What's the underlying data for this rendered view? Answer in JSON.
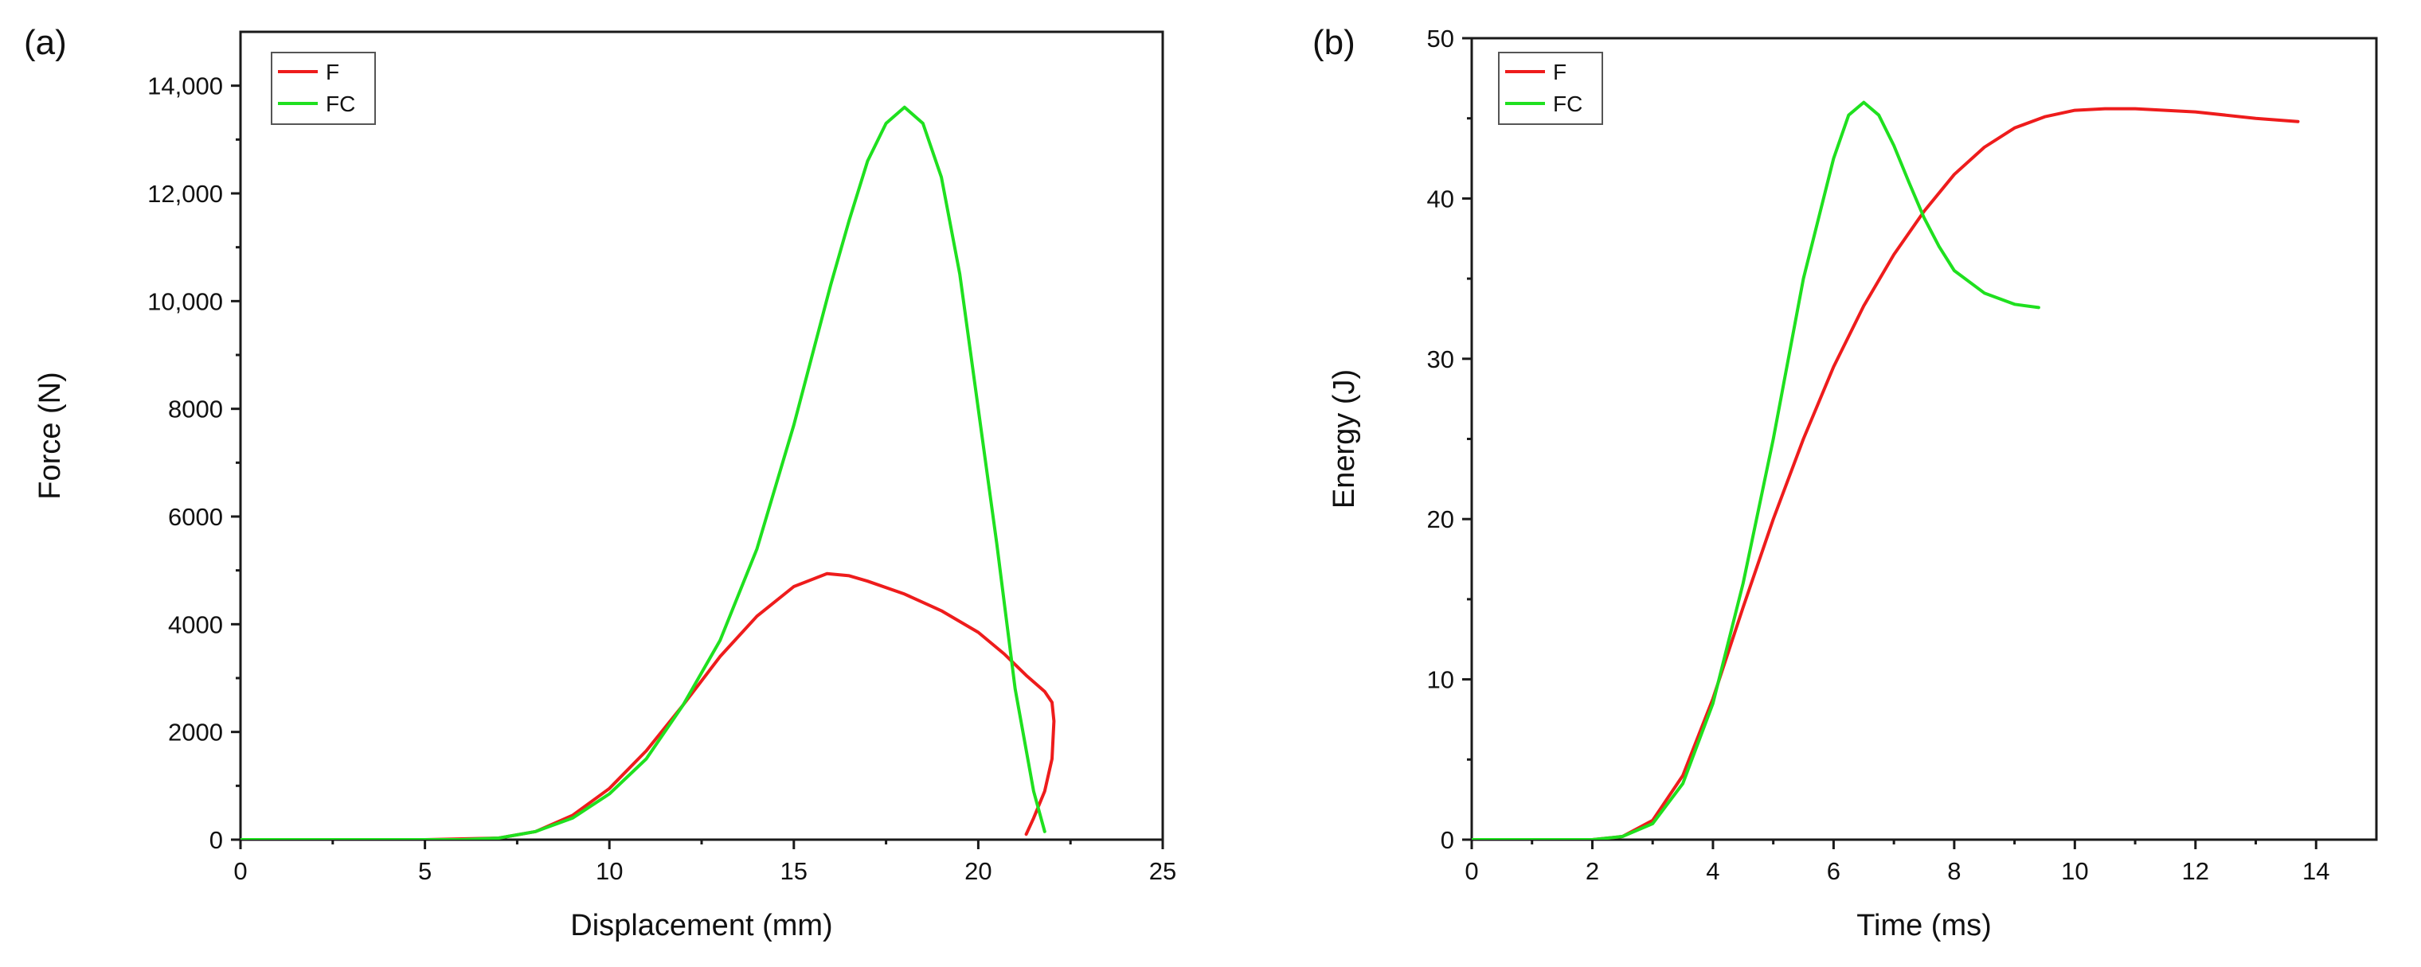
{
  "chart_data": [
    {
      "panel_label": "(a)",
      "type": "line",
      "xlabel": "Displacement (mm)",
      "ylabel": "Force (N)",
      "xlim": [
        0,
        25
      ],
      "ylim": [
        0,
        15000
      ],
      "xticks": [
        0,
        5,
        10,
        15,
        20,
        25
      ],
      "xtick_labels": [
        "0",
        "5",
        "10",
        "15",
        "20",
        "25"
      ],
      "yticks": [
        0,
        2000,
        4000,
        6000,
        8000,
        10000,
        12000,
        14000
      ],
      "ytick_labels": [
        "0",
        "2000",
        "4000",
        "6000",
        "8000",
        "10,000",
        "12,000",
        "14,000"
      ],
      "legend_position": "top-left",
      "series": [
        {
          "name": "F",
          "color": "#ee1c1c",
          "x": [
            0,
            5,
            7,
            8,
            9,
            10,
            11,
            12,
            13,
            14,
            15,
            15.9,
            16.5,
            17,
            18,
            19,
            20,
            20.7,
            21.3,
            21.8,
            22,
            22.05,
            22.0,
            21.8,
            21.5,
            21.3
          ],
          "y": [
            0,
            0,
            30,
            150,
            450,
            950,
            1650,
            2500,
            3400,
            4150,
            4700,
            4940,
            4900,
            4800,
            4560,
            4250,
            3850,
            3450,
            3050,
            2750,
            2550,
            2200,
            1500,
            900,
            400,
            100
          ]
        },
        {
          "name": "FC",
          "color": "#1fe01f",
          "x": [
            0,
            6,
            7,
            8,
            9,
            10,
            11,
            12,
            13,
            14,
            15,
            16,
            16.5,
            17,
            17.5,
            18,
            18.5,
            19,
            19.5,
            20,
            20.5,
            21,
            21.5,
            21.8
          ],
          "y": [
            0,
            0,
            30,
            150,
            400,
            850,
            1500,
            2500,
            3700,
            5400,
            7700,
            10300,
            11500,
            12600,
            13300,
            13600,
            13300,
            12300,
            10500,
            8000,
            5500,
            2800,
            900,
            150
          ]
        }
      ]
    },
    {
      "panel_label": "(b)",
      "type": "line",
      "xlabel": "Time (ms)",
      "ylabel": "Energy (J)",
      "xlim": [
        0,
        15
      ],
      "ylim": [
        0,
        50
      ],
      "xticks": [
        0,
        2,
        4,
        6,
        8,
        10,
        12,
        14
      ],
      "xtick_labels": [
        "0",
        "2",
        "4",
        "6",
        "8",
        "10",
        "12",
        "14"
      ],
      "yticks": [
        0,
        10,
        20,
        30,
        40,
        50
      ],
      "ytick_labels": [
        "0",
        "10",
        "20",
        "30",
        "40",
        "50"
      ],
      "legend_position": "top-left",
      "series": [
        {
          "name": "F",
          "color": "#ee1c1c",
          "x": [
            0,
            2,
            2.5,
            3,
            3.5,
            4,
            4.5,
            5,
            5.5,
            6,
            6.5,
            7,
            7.5,
            8,
            8.5,
            9,
            9.5,
            10,
            10.5,
            11,
            12,
            13,
            13.7
          ],
          "y": [
            0,
            0,
            0.2,
            1.2,
            4,
            8.8,
            14.5,
            20,
            25,
            29.5,
            33.3,
            36.5,
            39.2,
            41.5,
            43.2,
            44.4,
            45.1,
            45.5,
            45.6,
            45.6,
            45.4,
            45.0,
            44.8
          ]
        },
        {
          "name": "FC",
          "color": "#1fe01f",
          "x": [
            0,
            2,
            2.5,
            3,
            3.5,
            4,
            4.5,
            5,
            5.5,
            6,
            6.25,
            6.5,
            6.75,
            7,
            7.25,
            7.5,
            7.75,
            8,
            8.5,
            9,
            9.4
          ],
          "y": [
            0,
            0,
            0.2,
            1,
            3.5,
            8.5,
            16,
            25,
            35,
            42.5,
            45.2,
            46.0,
            45.2,
            43.3,
            41.0,
            38.8,
            37.0,
            35.5,
            34.1,
            33.4,
            33.2
          ]
        }
      ]
    }
  ]
}
